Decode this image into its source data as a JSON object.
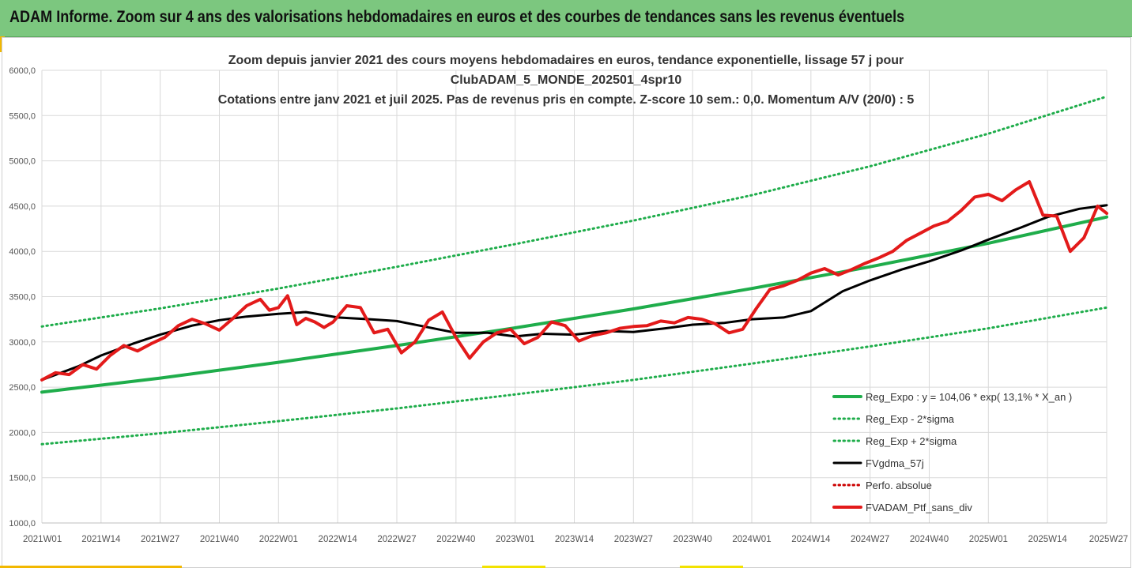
{
  "banner": {
    "text": "ADAM Informe. Zoom sur 4 ans des valorisations hebdomadaires en euros et des courbes de tendances sans les revenus éventuels"
  },
  "colors": {
    "banner_bg": "#7cc77f",
    "trend": "#1fad4b",
    "trend_bands": "#1fad4b",
    "smooth": "#000000",
    "perfo": "#cc0000",
    "portfolio": "#e31a1a",
    "grid": "#d9d9d9"
  },
  "chart_data": {
    "type": "line",
    "title_lines": [
      "Zoom depuis janvier 2021 des cours moyens hebdomadaires  en euros, tendance exponentielle, lissage 57 j pour",
      "ClubADAM_5_MONDE_202501_4spr10",
      "Cotations entre janv 2021 et juil 2025. Pas de revenus pris en compte. Z-score 10 sem.: 0,0. Momentum A/V (20/0) : 5"
    ],
    "x_tick_labels": [
      "2021W01",
      "2021W14",
      "2021W27",
      "2021W40",
      "2022W01",
      "2022W14",
      "2022W27",
      "2022W40",
      "2023W01",
      "2023W14",
      "2023W27",
      "2023W40",
      "2024W01",
      "2024W14",
      "2024W27",
      "2024W40",
      "2025W01",
      "2025W14",
      "2025W27"
    ],
    "x_range": [
      0,
      234
    ],
    "x_tick_step": 13,
    "y_range": [
      1000,
      6000
    ],
    "y_tick_step": 500,
    "y_tick_labels": [
      "1000,0",
      "1500,0",
      "2000,0",
      "2500,0",
      "3000,0",
      "3500,0",
      "4000,0",
      "4500,0",
      "5000,0",
      "5500,0",
      "6000,0"
    ],
    "grid": "vertical and horizontal",
    "legend_position": "bottom-right",
    "series": [
      {
        "name": "Reg_Expo : y = 104,06 * exp( 13,1% *  X_an )",
        "style": "solid-thick",
        "color": "#1fad4b",
        "x": [
          0,
          26,
          52,
          78,
          104,
          130,
          156,
          182,
          208,
          234
        ],
        "y": [
          2445,
          2600,
          2775,
          2960,
          3155,
          3365,
          3590,
          3830,
          4090,
          4380
        ]
      },
      {
        "name": "Reg_Exp - 2*sigma",
        "style": "dotted",
        "color": "#1fad4b",
        "x": [
          0,
          26,
          52,
          78,
          104,
          130,
          156,
          182,
          208,
          234
        ],
        "y": [
          1870,
          1990,
          2125,
          2265,
          2420,
          2580,
          2760,
          2950,
          3150,
          3380
        ]
      },
      {
        "name": "Reg_Exp + 2*sigma",
        "style": "dotted",
        "color": "#1fad4b",
        "x": [
          0,
          26,
          52,
          78,
          104,
          130,
          156,
          182,
          208,
          234
        ],
        "y": [
          3170,
          3370,
          3590,
          3830,
          4080,
          4340,
          4620,
          4940,
          5300,
          5710
        ]
      },
      {
        "name": "FVgdma_57j",
        "style": "solid",
        "color": "#000000",
        "x": [
          0,
          8,
          13,
          20,
          26,
          33,
          39,
          45,
          52,
          58,
          65,
          72,
          78,
          91,
          98,
          104,
          110,
          117,
          124,
          130,
          137,
          143,
          150,
          156,
          163,
          169,
          176,
          182,
          189,
          195,
          202,
          208,
          215,
          221,
          228,
          234
        ],
        "y": [
          2580,
          2730,
          2850,
          2980,
          3080,
          3180,
          3240,
          3280,
          3310,
          3330,
          3270,
          3250,
          3230,
          3100,
          3100,
          3060,
          3090,
          3080,
          3120,
          3110,
          3150,
          3190,
          3210,
          3250,
          3270,
          3340,
          3560,
          3680,
          3800,
          3890,
          4010,
          4130,
          4260,
          4380,
          4470,
          4510
        ]
      },
      {
        "name": "Perfo. absolue",
        "style": "dotted",
        "color": "#cc0000",
        "x": [],
        "y": []
      },
      {
        "name": "FVADAM_Ptf_sans_div",
        "style": "solid-thick",
        "color": "#e31a1a",
        "x": [
          0,
          3,
          6,
          9,
          12,
          15,
          18,
          21,
          24,
          27,
          30,
          33,
          36,
          39,
          42,
          45,
          48,
          50,
          52,
          54,
          56,
          58,
          60,
          62,
          64,
          67,
          70,
          73,
          76,
          79,
          82,
          85,
          88,
          91,
          94,
          97,
          100,
          103,
          106,
          109,
          112,
          115,
          118,
          121,
          124,
          127,
          130,
          133,
          136,
          139,
          142,
          145,
          148,
          151,
          154,
          157,
          160,
          163,
          166,
          169,
          172,
          175,
          178,
          181,
          184,
          187,
          190,
          193,
          196,
          199,
          202,
          205,
          208,
          211,
          214,
          217,
          220,
          223,
          226,
          229,
          232,
          234
        ],
        "y": [
          2580,
          2660,
          2640,
          2750,
          2700,
          2850,
          2960,
          2900,
          2980,
          3050,
          3180,
          3250,
          3200,
          3130,
          3260,
          3400,
          3470,
          3350,
          3380,
          3510,
          3190,
          3260,
          3220,
          3160,
          3220,
          3400,
          3380,
          3100,
          3140,
          2880,
          3000,
          3240,
          3330,
          3050,
          2820,
          3000,
          3100,
          3140,
          2980,
          3050,
          3220,
          3180,
          3010,
          3070,
          3100,
          3150,
          3170,
          3180,
          3230,
          3210,
          3270,
          3250,
          3200,
          3100,
          3140,
          3370,
          3580,
          3620,
          3680,
          3760,
          3810,
          3740,
          3800,
          3870,
          3930,
          4000,
          4120,
          4200,
          4280,
          4330,
          4450,
          4600,
          4630,
          4560,
          4680,
          4770,
          4400,
          4390,
          4000,
          4150,
          4500,
          4420
        ]
      }
    ]
  }
}
